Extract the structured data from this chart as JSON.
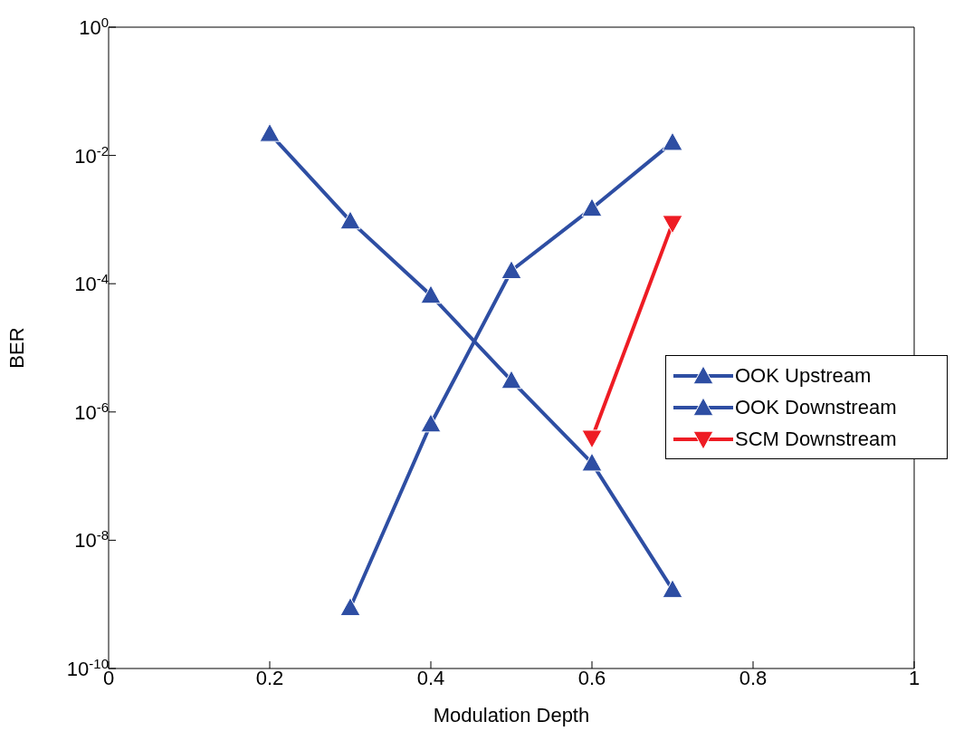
{
  "chart_data": {
    "type": "line",
    "xlabel": "Modulation Depth",
    "ylabel": "BER",
    "log": "y",
    "xlim": [
      0,
      1
    ],
    "xticks": [
      0,
      0.2,
      0.4,
      0.6,
      0.8,
      1
    ],
    "ylim": [
      1e-10,
      1
    ],
    "yticks": [
      {
        "value": 1e-10,
        "label": "10$^{-10}$"
      },
      {
        "value": 1e-08,
        "label": "10$^{-8}$"
      },
      {
        "value": 1e-06,
        "label": "10$^{-6}$"
      },
      {
        "value": 0.0001,
        "label": "10$^{-4}$"
      },
      {
        "value": 0.01,
        "label": "10$^{-2}$"
      },
      {
        "value": 1,
        "label": "10$^{0}$"
      }
    ],
    "grid": false,
    "legend": "right",
    "line_style": "solid",
    "series": [
      {
        "name": "OOK Upstream",
        "color": "#2e4ea3",
        "marker": "triangle",
        "x": [
          0.2,
          0.3,
          0.4,
          0.5,
          0.6,
          0.7
        ],
        "values": [
          0.022,
          0.00095,
          6.6e-05,
          3.1e-06,
          1.6e-07,
          1.7e-09
        ]
      },
      {
        "name": "OOK Downstream",
        "color": "#2e4ea3",
        "marker": "triangle",
        "x": [
          0.3,
          0.4,
          0.5,
          0.6,
          0.7
        ],
        "values": [
          8.9e-10,
          6.5e-07,
          0.00016,
          0.0015,
          0.016
        ]
      },
      {
        "name": "SCM Downstream",
        "color": "#ee1c24",
        "marker": "triangle_down",
        "x": [
          0.6,
          0.7
        ],
        "values": [
          3.9e-07,
          0.00087
        ]
      }
    ]
  }
}
